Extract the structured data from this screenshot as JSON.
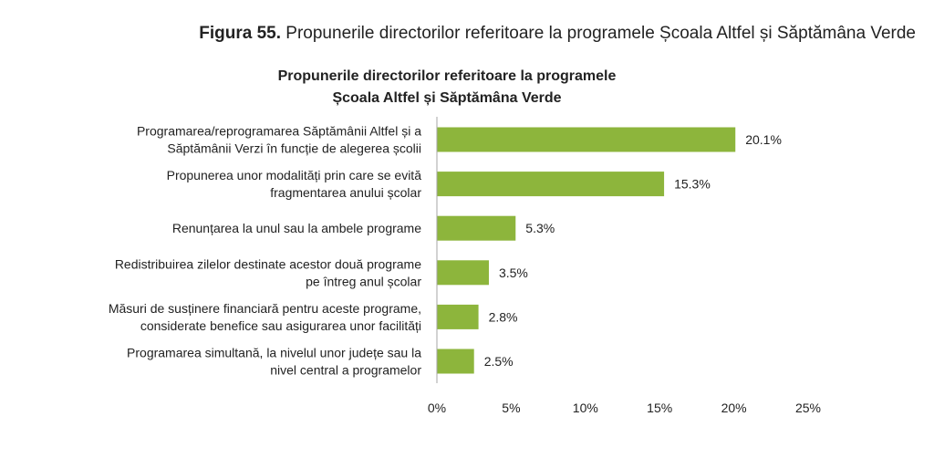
{
  "figure_caption": {
    "number": "Figura 55.",
    "text": "Propunerile directorilor referitoare la programele Școala Altfel și Săptămâna Verde"
  },
  "chart_data": {
    "type": "bar",
    "orientation": "horizontal",
    "title_lines": [
      "Propunerile directorilor referitoare la programele",
      "Școala Altfel și Săptămâna Verde"
    ],
    "categories": [
      [
        "Programarea/reprogramarea Săptămânii Altfel și a",
        "Săptămânii Verzi în funcție de alegerea școlii"
      ],
      [
        "Propunerea unor modalități prin care se evită",
        "fragmentarea anului școlar"
      ],
      [
        "Renunțarea la unul sau la ambele programe"
      ],
      [
        "Redistribuirea zilelor destinate acestor două programe",
        "pe întreg anul școlar"
      ],
      [
        "Măsuri de susținere financiară pentru aceste programe,",
        "considerate benefice sau asigurarea unor facilități"
      ],
      [
        "Programarea simultană, la nivelul unor județe sau la",
        "nivel central a programelor"
      ]
    ],
    "values": [
      20.1,
      15.3,
      5.3,
      3.5,
      2.8,
      2.5
    ],
    "value_labels": [
      "20.1%",
      "15.3%",
      "5.3%",
      "3.5%",
      "2.8%",
      "2.5%"
    ],
    "xlim": [
      0,
      25
    ],
    "xticks": [
      0,
      5,
      10,
      15,
      20,
      25
    ],
    "xtick_labels": [
      "0%",
      "5%",
      "10%",
      "15%",
      "20%",
      "25%"
    ],
    "grid": false,
    "bar_color": "#8DB53C",
    "axis_color": "#A6A6A6",
    "xlabel": "",
    "ylabel": ""
  }
}
